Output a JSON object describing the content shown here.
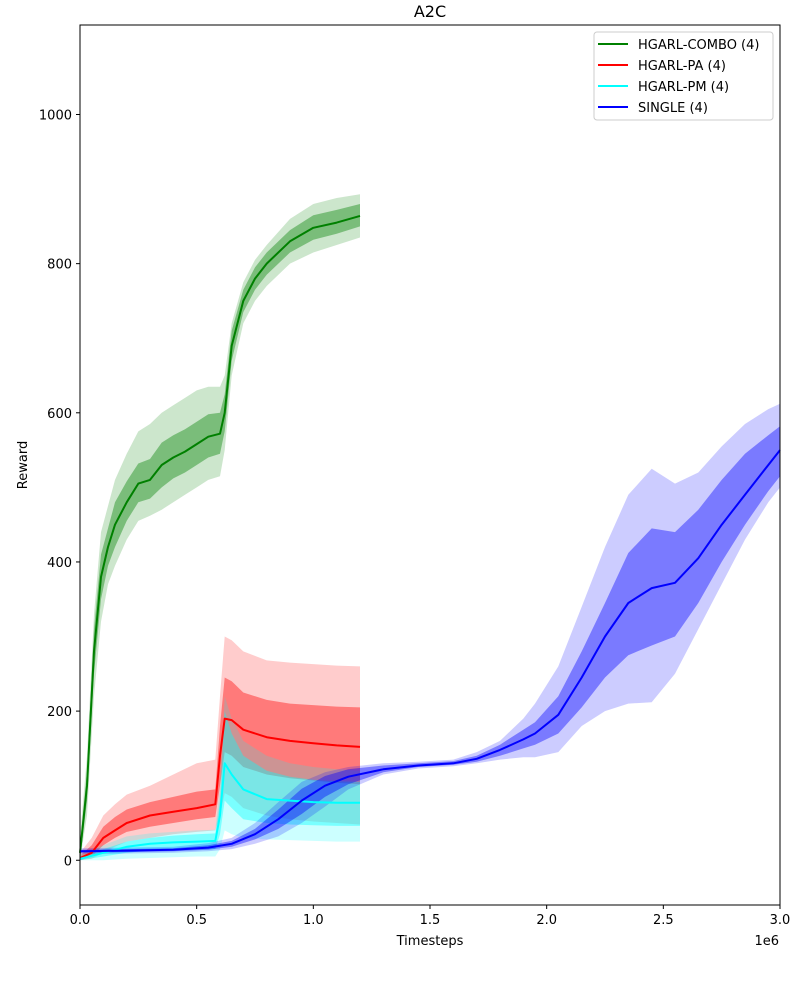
{
  "chart_data": {
    "type": "line",
    "title": "A2C",
    "xlabel": "Timesteps",
    "ylabel": "Reward",
    "x_offset_label": "1e6",
    "xlim": [
      0,
      3.0
    ],
    "ylim": [
      -60,
      1120
    ],
    "xticks": [
      0.0,
      0.5,
      1.0,
      1.5,
      2.0,
      2.5,
      3.0
    ],
    "xtick_labels": [
      "0.0",
      "0.5",
      "1.0",
      "1.5",
      "2.0",
      "2.5",
      "3.0"
    ],
    "yticks": [
      0,
      200,
      400,
      600,
      800,
      1000
    ],
    "ytick_labels": [
      "0",
      "200",
      "400",
      "600",
      "800",
      "1000"
    ],
    "legend_position": "top-right",
    "series": [
      {
        "name": "HGARL-COMBO (4)",
        "color": "#008000",
        "x": [
          0.0,
          0.03,
          0.06,
          0.09,
          0.12,
          0.15,
          0.2,
          0.25,
          0.3,
          0.35,
          0.4,
          0.45,
          0.5,
          0.55,
          0.6,
          0.62,
          0.65,
          0.7,
          0.75,
          0.8,
          0.9,
          1.0,
          1.1,
          1.2
        ],
        "mean": [
          10,
          100,
          280,
          380,
          420,
          450,
          480,
          505,
          510,
          530,
          540,
          548,
          558,
          568,
          572,
          600,
          690,
          750,
          780,
          800,
          830,
          848,
          855,
          864
        ],
        "std_low": [
          0,
          80,
          250,
          350,
          395,
          420,
          455,
          480,
          485,
          500,
          512,
          520,
          530,
          540,
          545,
          575,
          670,
          735,
          765,
          785,
          815,
          832,
          840,
          850
        ],
        "std_high": [
          20,
          120,
          310,
          410,
          445,
          480,
          508,
          532,
          538,
          560,
          570,
          578,
          588,
          598,
          600,
          625,
          710,
          765,
          795,
          815,
          845,
          865,
          872,
          880
        ],
        "min_low": [
          0,
          60,
          220,
          320,
          370,
          395,
          430,
          455,
          462,
          470,
          480,
          490,
          500,
          510,
          515,
          550,
          650,
          720,
          750,
          770,
          800,
          815,
          825,
          835
        ],
        "max_high": [
          30,
          140,
          330,
          440,
          475,
          510,
          545,
          575,
          585,
          600,
          610,
          620,
          630,
          635,
          635,
          650,
          720,
          775,
          805,
          825,
          860,
          880,
          888,
          893
        ]
      },
      {
        "name": "HGARL-PA (4)",
        "color": "#ff0000",
        "x": [
          0.0,
          0.05,
          0.1,
          0.15,
          0.2,
          0.3,
          0.4,
          0.5,
          0.58,
          0.6,
          0.62,
          0.65,
          0.7,
          0.8,
          0.9,
          1.0,
          1.1,
          1.2
        ],
        "mean": [
          3,
          10,
          30,
          40,
          50,
          60,
          65,
          70,
          75,
          140,
          190,
          188,
          175,
          165,
          160,
          157,
          154,
          152
        ],
        "std_low": [
          0,
          5,
          20,
          30,
          38,
          45,
          50,
          55,
          58,
          100,
          145,
          140,
          125,
          115,
          110,
          107,
          104,
          102
        ],
        "std_high": [
          6,
          20,
          45,
          58,
          68,
          78,
          85,
          92,
          95,
          180,
          245,
          240,
          225,
          215,
          210,
          208,
          206,
          205
        ],
        "min_low": [
          0,
          2,
          10,
          18,
          25,
          30,
          35,
          38,
          40,
          60,
          90,
          85,
          70,
          60,
          55,
          52,
          50,
          48
        ],
        "max_high": [
          10,
          30,
          60,
          75,
          88,
          100,
          115,
          130,
          135,
          220,
          300,
          295,
          280,
          268,
          265,
          263,
          261,
          260
        ]
      },
      {
        "name": "HGARL-PM (4)",
        "color": "#00ffff",
        "x": [
          0.0,
          0.1,
          0.2,
          0.3,
          0.4,
          0.5,
          0.58,
          0.6,
          0.62,
          0.65,
          0.7,
          0.8,
          0.9,
          1.0,
          1.1,
          1.2
        ],
        "mean": [
          2,
          10,
          18,
          22,
          24,
          25,
          26,
          60,
          130,
          115,
          95,
          82,
          80,
          78,
          77,
          77
        ],
        "std_low": [
          0,
          5,
          10,
          13,
          14,
          15,
          15,
          35,
          80,
          70,
          55,
          50,
          48,
          47,
          46,
          46
        ],
        "std_high": [
          5,
          15,
          25,
          30,
          33,
          35,
          36,
          80,
          200,
          170,
          140,
          120,
          112,
          108,
          106,
          105
        ],
        "min_low": [
          0,
          0,
          2,
          3,
          4,
          5,
          5,
          15,
          40,
          35,
          30,
          28,
          27,
          26,
          25,
          25
        ],
        "max_high": [
          8,
          20,
          32,
          36,
          38,
          40,
          41,
          100,
          220,
          190,
          160,
          140,
          130,
          125,
          122,
          120
        ]
      },
      {
        "name": "SINGLE (4)",
        "color": "#0000ff",
        "x": [
          0.0,
          0.2,
          0.4,
          0.55,
          0.65,
          0.75,
          0.85,
          0.95,
          1.05,
          1.15,
          1.3,
          1.45,
          1.6,
          1.7,
          1.8,
          1.9,
          1.95,
          2.05,
          2.15,
          2.25,
          2.35,
          2.45,
          2.55,
          2.65,
          2.75,
          2.85,
          2.95,
          3.0
        ],
        "mean": [
          12,
          13,
          14,
          17,
          22,
          35,
          55,
          80,
          100,
          112,
          122,
          127,
          130,
          136,
          148,
          162,
          170,
          195,
          245,
          300,
          345,
          365,
          372,
          405,
          450,
          490,
          530,
          550
        ],
        "std_low": [
          10,
          11,
          12,
          14,
          18,
          28,
          42,
          62,
          85,
          102,
          118,
          125,
          128,
          132,
          140,
          150,
          155,
          170,
          205,
          245,
          275,
          288,
          300,
          345,
          400,
          450,
          495,
          515
        ],
        "std_high": [
          14,
          15,
          16,
          20,
          26,
          42,
          68,
          96,
          113,
          122,
          127,
          130,
          133,
          140,
          155,
          175,
          185,
          220,
          280,
          345,
          412,
          445,
          440,
          470,
          510,
          545,
          570,
          582
        ],
        "min_low": [
          8,
          9,
          10,
          12,
          15,
          22,
          32,
          50,
          72,
          95,
          115,
          123,
          126,
          130,
          135,
          138,
          138,
          145,
          180,
          200,
          210,
          212,
          250,
          310,
          370,
          430,
          480,
          500
        ],
        "max_high": [
          16,
          17,
          18,
          23,
          30,
          50,
          78,
          105,
          118,
          125,
          130,
          132,
          135,
          145,
          160,
          190,
          210,
          260,
          340,
          420,
          490,
          525,
          505,
          520,
          555,
          585,
          605,
          612
        ]
      }
    ]
  }
}
